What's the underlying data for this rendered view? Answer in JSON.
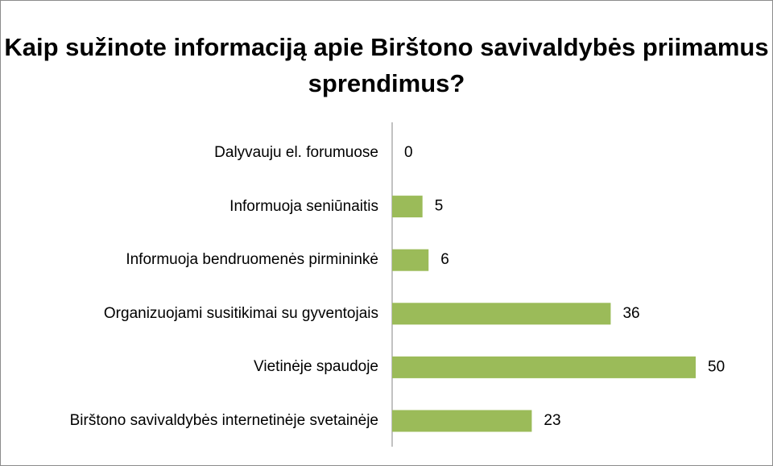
{
  "chart_data": {
    "type": "bar",
    "orientation": "horizontal",
    "title": "Kaip sužinote informaciją apie Birštono savivaldybės priimamus sprendimus?",
    "categories": [
      "Dalyvauju el. forumuose",
      "Informuoja seniūnaitis",
      "Informuoja bendruomenės pirmininkė",
      "Organizuojami susitikimai su gyventojais",
      "Vietinėje spaudoje",
      "Birštono savivaldybės internetinėje svetainėje"
    ],
    "values": [
      0,
      5,
      6,
      36,
      50,
      23
    ],
    "color": "#9bbb59",
    "xlim": [
      0,
      50
    ]
  }
}
